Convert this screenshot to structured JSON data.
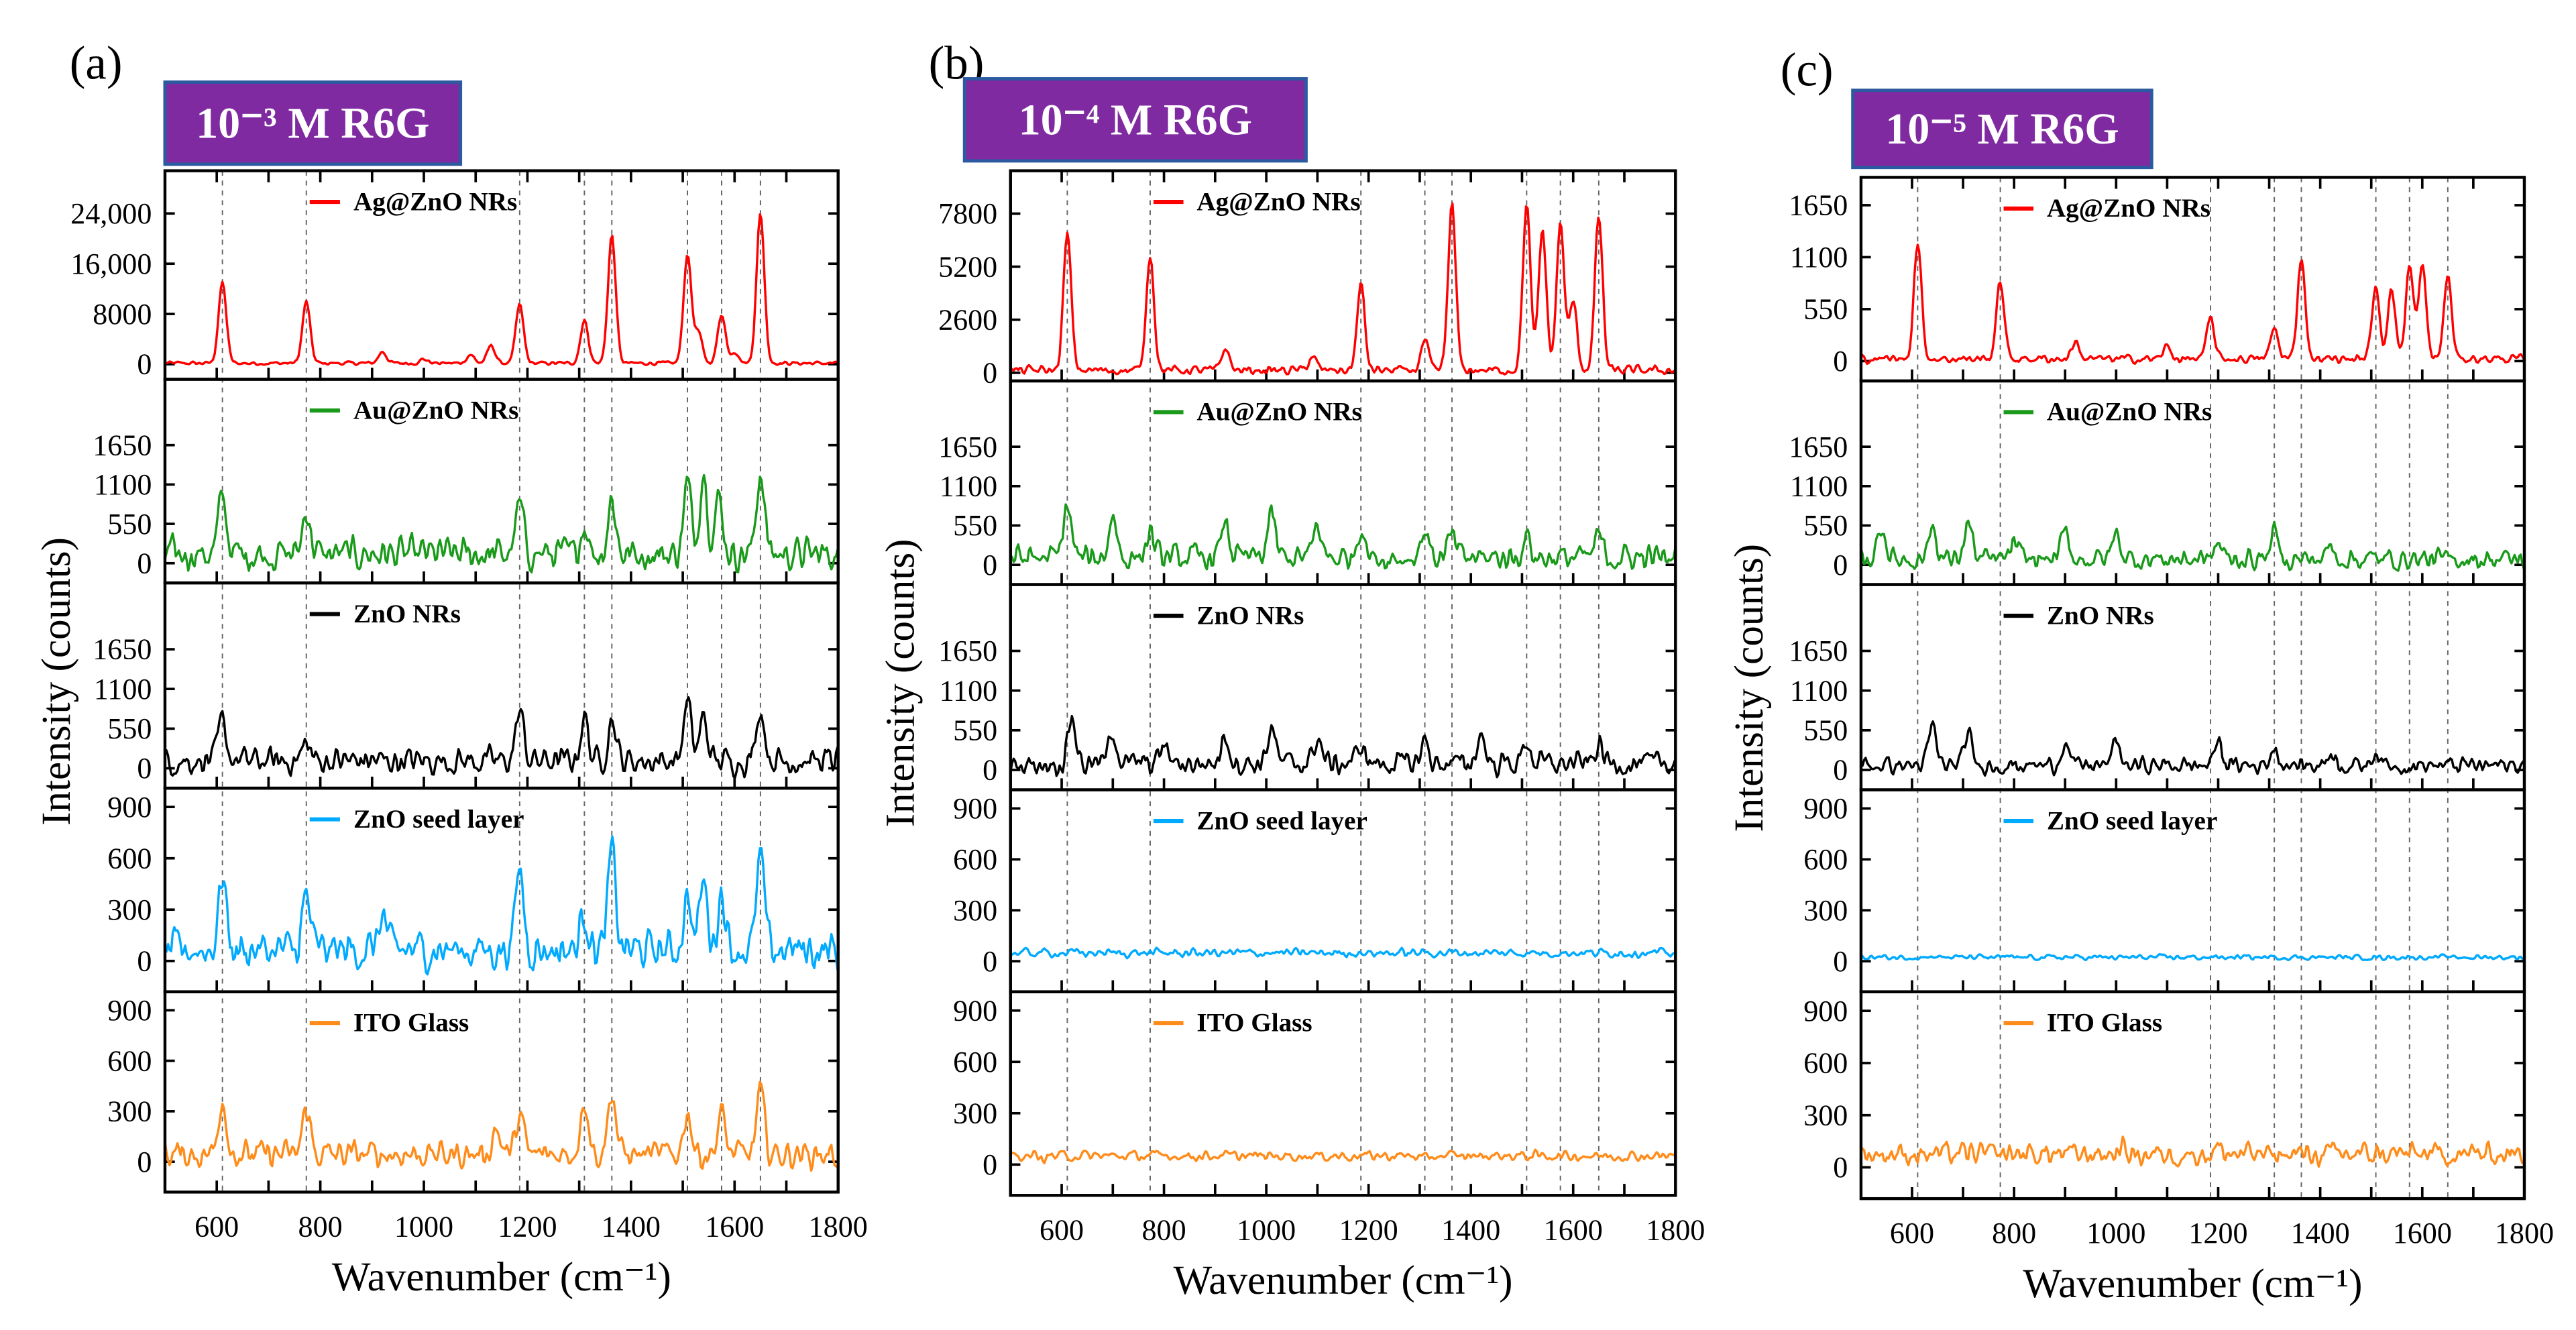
{
  "chart_data": [
    {
      "type": "line",
      "panel_label": "(a)",
      "title": "10⁻³ M R6G",
      "xlabel": "Wavenumber (cm⁻¹)",
      "ylabel": "Intensity (counts)",
      "xlim": [
        500,
        1800
      ],
      "xticks": [
        600,
        800,
        1000,
        1200,
        1400,
        1600,
        1800
      ],
      "xticklabels": [
        "600",
        "800",
        "1000",
        "1200",
        "1400",
        "1600",
        "1800"
      ],
      "reference_lines": [
        611,
        773,
        1185,
        1310,
        1363,
        1509,
        1575,
        1650
      ],
      "title_color": "#7f2aa0",
      "series": [
        {
          "name": "Ag@ZnO NRs",
          "color": "#ff0000",
          "ylim": [
            -2400,
            30800
          ],
          "yticks": [
            0,
            8000,
            16000,
            24000
          ],
          "yticklabels": [
            "0",
            "8000",
            "16,000",
            "24,000"
          ],
          "noise": 400,
          "peaks": [
            [
              611,
              13000
            ],
            [
              773,
              10000
            ],
            [
              920,
              2000
            ],
            [
              1000,
              800
            ],
            [
              1090,
              1500
            ],
            [
              1130,
              3000
            ],
            [
              1185,
              9500
            ],
            [
              1310,
              7000
            ],
            [
              1363,
              20500
            ],
            [
              1509,
              17500
            ],
            [
              1530,
              5000
            ],
            [
              1575,
              8000
            ],
            [
              1600,
              2000
            ],
            [
              1650,
              24000
            ]
          ]
        },
        {
          "name": "Au@ZnO NRs",
          "color": "#1a9a1a",
          "ylim": [
            -275,
            2570
          ],
          "yticks": [
            0,
            550,
            1100,
            1650
          ],
          "yticklabels": [
            "0",
            "550",
            "1100",
            "1650"
          ],
          "noise": 320,
          "peaks": [
            [
              611,
              950
            ],
            [
              773,
              750
            ],
            [
              1185,
              800
            ],
            [
              1310,
              550
            ],
            [
              1363,
              900
            ],
            [
              1509,
              1100
            ],
            [
              1540,
              1300
            ],
            [
              1570,
              900
            ],
            [
              1650,
              1300
            ]
          ]
        },
        {
          "name": "ZnO NRs",
          "color": "#000000",
          "ylim": [
            -275,
            2570
          ],
          "yticks": [
            0,
            550,
            1100,
            1650
          ],
          "yticklabels": [
            "0",
            "550",
            "1100",
            "1650"
          ],
          "noise": 260,
          "peaks": [
            [
              611,
              650
            ],
            [
              773,
              350
            ],
            [
              1185,
              800
            ],
            [
              1310,
              700
            ],
            [
              1363,
              700
            ],
            [
              1509,
              900
            ],
            [
              1540,
              700
            ],
            [
              1650,
              850
            ]
          ]
        },
        {
          "name": "ZnO seed layer",
          "color": "#00aaff",
          "ylim": [
            -180,
            1010
          ],
          "yticks": [
            0,
            300,
            600,
            900
          ],
          "yticklabels": [
            "0",
            "300",
            "600",
            "900"
          ],
          "noise": 160,
          "peaks": [
            [
              611,
              500
            ],
            [
              773,
              380
            ],
            [
              920,
              270
            ],
            [
              1185,
              550
            ],
            [
              1310,
              300
            ],
            [
              1363,
              640
            ],
            [
              1509,
              380
            ],
            [
              1540,
              470
            ],
            [
              1575,
              400
            ],
            [
              1650,
              600
            ]
          ]
        },
        {
          "name": "ITO Glass",
          "color": "#ff8c1a",
          "ylim": [
            -180,
            1010
          ],
          "yticks": [
            0,
            300,
            600,
            900
          ],
          "yticklabels": [
            "0",
            "300",
            "600",
            "900"
          ],
          "noise": 110,
          "peaks": [
            [
              611,
              380
            ],
            [
              773,
              320
            ],
            [
              1140,
              200
            ],
            [
              1185,
              280
            ],
            [
              1310,
              380
            ],
            [
              1363,
              420
            ],
            [
              1509,
              300
            ],
            [
              1575,
              280
            ],
            [
              1650,
              410
            ]
          ]
        }
      ]
    },
    {
      "type": "line",
      "panel_label": "(b)",
      "title": "10⁻⁴ M R6G",
      "xlabel": "Wavenumber (cm⁻¹)",
      "ylabel": "Intensity (counts)",
      "xlim": [
        500,
        1800
      ],
      "xticks": [
        600,
        800,
        1000,
        1200,
        1400,
        1600,
        1800
      ],
      "xticklabels": [
        "600",
        "800",
        "1000",
        "1200",
        "1400",
        "1600",
        "1800"
      ],
      "reference_lines": [
        611,
        773,
        1185,
        1310,
        1363,
        1509,
        1575,
        1650
      ],
      "title_color": "#7f2aa0",
      "series": [
        {
          "name": "Ag@ZnO NRs",
          "color": "#ff0000",
          "ylim": [
            -400,
            9900
          ],
          "yticks": [
            0,
            2600,
            5200,
            7800
          ],
          "yticklabels": [
            "0",
            "2600",
            "5200",
            "7800"
          ],
          "noise": 300,
          "peaks": [
            [
              611,
              6800
            ],
            [
              773,
              5800
            ],
            [
              920,
              1200
            ],
            [
              1090,
              800
            ],
            [
              1185,
              4300
            ],
            [
              1310,
              1500
            ],
            [
              1363,
              8200
            ],
            [
              1509,
              8200
            ],
            [
              1540,
              7000
            ],
            [
              1575,
              7300
            ],
            [
              1600,
              3500
            ],
            [
              1650,
              7700
            ]
          ]
        },
        {
          "name": "Au@ZnO NRs",
          "color": "#1a9a1a",
          "ylim": [
            -275,
            2570
          ],
          "yticks": [
            0,
            550,
            1100,
            1650
          ],
          "yticklabels": [
            "0",
            "550",
            "1100",
            "1650"
          ],
          "noise": 250,
          "peaks": [
            [
              611,
              850
            ],
            [
              700,
              700
            ],
            [
              773,
              450
            ],
            [
              920,
              600
            ],
            [
              1010,
              700
            ],
            [
              1100,
              550
            ],
            [
              1185,
              550
            ],
            [
              1310,
              500
            ],
            [
              1363,
              400
            ],
            [
              1509,
              400
            ],
            [
              1650,
              400
            ]
          ]
        },
        {
          "name": "ZnO NRs",
          "color": "#000000",
          "ylim": [
            -275,
            2570
          ],
          "yticks": [
            0,
            550,
            1100,
            1650
          ],
          "yticklabels": [
            "0",
            "550",
            "1100",
            "1650"
          ],
          "noise": 220,
          "peaks": [
            [
              620,
              750
            ],
            [
              700,
              550
            ],
            [
              800,
              350
            ],
            [
              920,
              500
            ],
            [
              1010,
              600
            ],
            [
              1100,
              450
            ],
            [
              1185,
              350
            ],
            [
              1310,
              400
            ],
            [
              1420,
              500
            ],
            [
              1509,
              400
            ],
            [
              1650,
              350
            ]
          ]
        },
        {
          "name": "ZnO seed layer",
          "color": "#00aaff",
          "ylim": [
            -180,
            1010
          ],
          "yticks": [
            0,
            300,
            600,
            900
          ],
          "yticklabels": [
            "0",
            "300",
            "600",
            "900"
          ],
          "noise": 35,
          "baseline": 35,
          "peaks": [
            [
              611,
              50
            ],
            [
              1363,
              50
            ]
          ]
        },
        {
          "name": "ITO Glass",
          "color": "#ff8c1a",
          "ylim": [
            -180,
            1010
          ],
          "yticks": [
            0,
            300,
            600,
            900
          ],
          "yticklabels": [
            "0",
            "300",
            "600",
            "900"
          ],
          "noise": 40,
          "baseline": 35,
          "peaks": [
            [
              560,
              40
            ],
            [
              1310,
              30
            ]
          ]
        }
      ]
    },
    {
      "type": "line",
      "panel_label": "(c)",
      "title": "10⁻⁵ M R6G",
      "xlabel": "Wavenumber (cm⁻¹)",
      "ylabel": "Intensity (counts)",
      "xlim": [
        500,
        1800
      ],
      "xticks": [
        600,
        800,
        1000,
        1200,
        1400,
        1600,
        1800
      ],
      "xticklabels": [
        "600",
        "800",
        "1000",
        "1200",
        "1400",
        "1600",
        "1800"
      ],
      "reference_lines": [
        611,
        773,
        1185,
        1310,
        1363,
        1509,
        1575,
        1650
      ],
      "title_color": "#7f2aa0",
      "series": [
        {
          "name": "Ag@ZnO NRs",
          "color": "#ff0000",
          "ylim": [
            -210,
            1945
          ],
          "yticks": [
            0,
            550,
            1100,
            1650
          ],
          "yticklabels": [
            "0",
            "550",
            "1100",
            "1650"
          ],
          "noise": 60,
          "peaks": [
            [
              611,
              1250
            ],
            [
              773,
              850
            ],
            [
              920,
              200
            ],
            [
              1100,
              150
            ],
            [
              1185,
              450
            ],
            [
              1310,
              350
            ],
            [
              1363,
              1100
            ],
            [
              1509,
              800
            ],
            [
              1540,
              750
            ],
            [
              1575,
              1000
            ],
            [
              1600,
              1000
            ],
            [
              1650,
              900
            ]
          ]
        },
        {
          "name": "Au@ZnO NRs",
          "color": "#1a9a1a",
          "ylim": [
            -275,
            2570
          ],
          "yticks": [
            0,
            550,
            1100,
            1650
          ],
          "yticklabels": [
            "0",
            "550",
            "1100",
            "1650"
          ],
          "noise": 200,
          "peaks": [
            [
              540,
              550
            ],
            [
              640,
              550
            ],
            [
              710,
              600
            ],
            [
              800,
              300
            ],
            [
              900,
              450
            ],
            [
              1000,
              450
            ],
            [
              1200,
              300
            ],
            [
              1310,
              450
            ],
            [
              1420,
              250
            ]
          ]
        },
        {
          "name": "ZnO NRs",
          "color": "#000000",
          "ylim": [
            -275,
            2570
          ],
          "yticks": [
            0,
            550,
            1100,
            1650
          ],
          "yticklabels": [
            "0",
            "550",
            "1100",
            "1650"
          ],
          "noise": 160,
          "peaks": [
            [
              640,
              600
            ],
            [
              710,
              500
            ],
            [
              900,
              400
            ],
            [
              1000,
              400
            ],
            [
              1200,
              400
            ],
            [
              1310,
              300
            ],
            [
              1420,
              250
            ],
            [
              1509,
              250
            ]
          ]
        },
        {
          "name": "ZnO seed layer",
          "color": "#00aaff",
          "ylim": [
            -180,
            1010
          ],
          "yticks": [
            0,
            300,
            600,
            900
          ],
          "yticklabels": [
            "0",
            "300",
            "600",
            "900"
          ],
          "noise": 20,
          "baseline": 15,
          "peaks": [
            [
              640,
              30
            ],
            [
              1000,
              20
            ]
          ]
        },
        {
          "name": "ITO Glass",
          "color": "#ff8c1a",
          "ylim": [
            -180,
            1010
          ],
          "yticks": [
            0,
            300,
            600,
            900
          ],
          "yticklabels": [
            "0",
            "300",
            "600",
            "900"
          ],
          "noise": 90,
          "baseline": 40,
          "peaks": [
            [
              611,
              80
            ],
            [
              1010,
              110
            ],
            [
              1200,
              110
            ],
            [
              1310,
              70
            ]
          ]
        }
      ]
    }
  ]
}
